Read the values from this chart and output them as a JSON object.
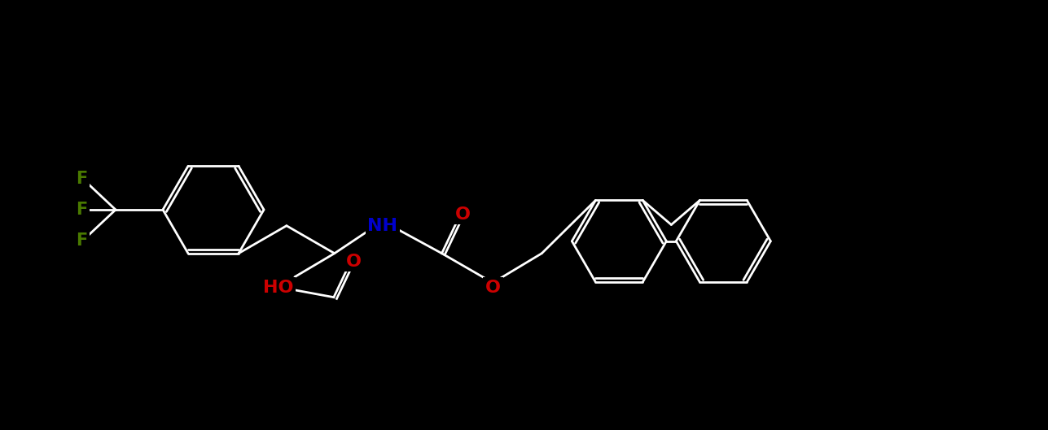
{
  "background_color": "#000000",
  "bond_color": "#ffffff",
  "bond_width": 2.0,
  "atom_colors": {
    "F": "#4a7a00",
    "O": "#cc0000",
    "N": "#0000cc",
    "H": "#ffffff",
    "C": "#ffffff"
  },
  "font_size": 15,
  "fig_width": 12.87,
  "fig_height": 5.29,
  "dpi": 100
}
